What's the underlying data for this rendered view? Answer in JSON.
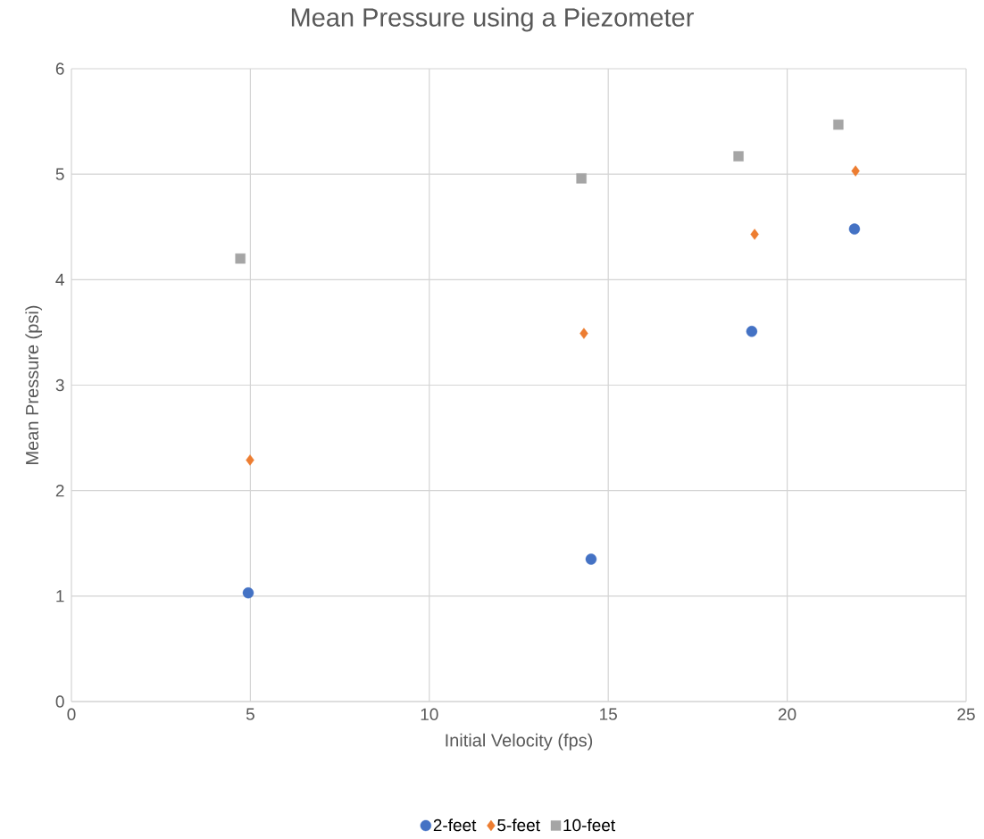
{
  "chart_data": {
    "type": "scatter",
    "title": "Mean Pressure using a Piezometer",
    "xlabel": "Initial Velocity (fps)",
    "ylabel": "Mean Pressure (psi)",
    "xlim": [
      0,
      25
    ],
    "ylim": [
      0,
      6
    ],
    "xticks": [
      0,
      5,
      10,
      15,
      20,
      25
    ],
    "yticks": [
      0,
      1,
      2,
      3,
      4,
      5,
      6
    ],
    "grid": true,
    "legend": "bottom",
    "series": [
      {
        "name": "2-feet",
        "color": "#4472c4",
        "marker": "circle",
        "x": [
          4.94,
          14.52,
          19.01,
          21.88
        ],
        "values": [
          1.03,
          1.35,
          3.51,
          4.48
        ]
      },
      {
        "name": "5-feet",
        "color": "#ed7d31",
        "marker": "diamond",
        "x": [
          4.99,
          14.32,
          19.09,
          21.91
        ],
        "values": [
          2.29,
          3.49,
          4.43,
          5.03
        ]
      },
      {
        "name": "10-feet",
        "color": "#a5a5a5",
        "marker": "square",
        "x": [
          4.72,
          14.25,
          18.64,
          21.43
        ],
        "values": [
          4.2,
          4.96,
          5.17,
          5.47
        ]
      }
    ]
  }
}
